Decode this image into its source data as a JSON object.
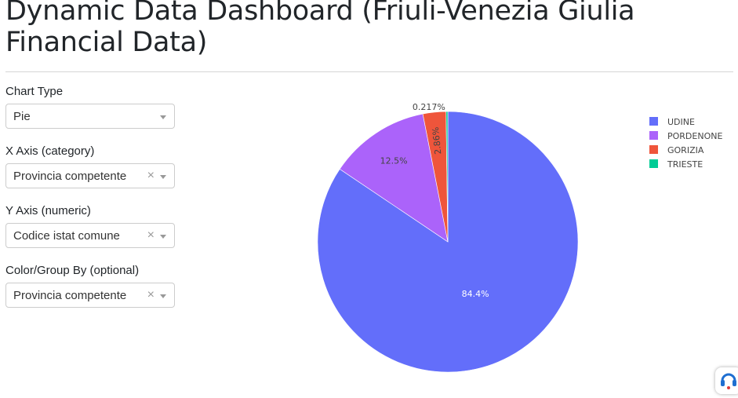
{
  "header": {
    "title": "Dynamic Data Dashboard (Friuli-Venezia Giulia Financial Data)"
  },
  "controls": [
    {
      "label": "Chart Type",
      "value": "Pie",
      "clearable": false
    },
    {
      "label": "X Axis (category)",
      "value": "Provincia competente",
      "clearable": true
    },
    {
      "label": "Y Axis (numeric)",
      "value": "Codice istat comune",
      "clearable": true
    },
    {
      "label": "Color/Group By (optional)",
      "value": "Provincia competente",
      "clearable": true
    }
  ],
  "chart_data": {
    "type": "pie",
    "title": "",
    "legend_position": "top-right",
    "slices": [
      {
        "label": "UDINE",
        "percent": 84.4,
        "percent_text": "84.4%",
        "color": "#636efa"
      },
      {
        "label": "PORDENONE",
        "percent": 12.5,
        "percent_text": "12.5%",
        "color": "#ab63fa"
      },
      {
        "label": "GORIZIA",
        "percent": 2.86,
        "percent_text": "2.86%",
        "color": "#ef553b"
      },
      {
        "label": "TRIESTE",
        "percent": 0.217,
        "percent_text": "0.217%",
        "color": "#00cc96"
      }
    ]
  },
  "icons": {
    "clear": "clear-x-icon",
    "dropdown": "chevron-down-icon",
    "helper": "helper-widget-icon"
  }
}
